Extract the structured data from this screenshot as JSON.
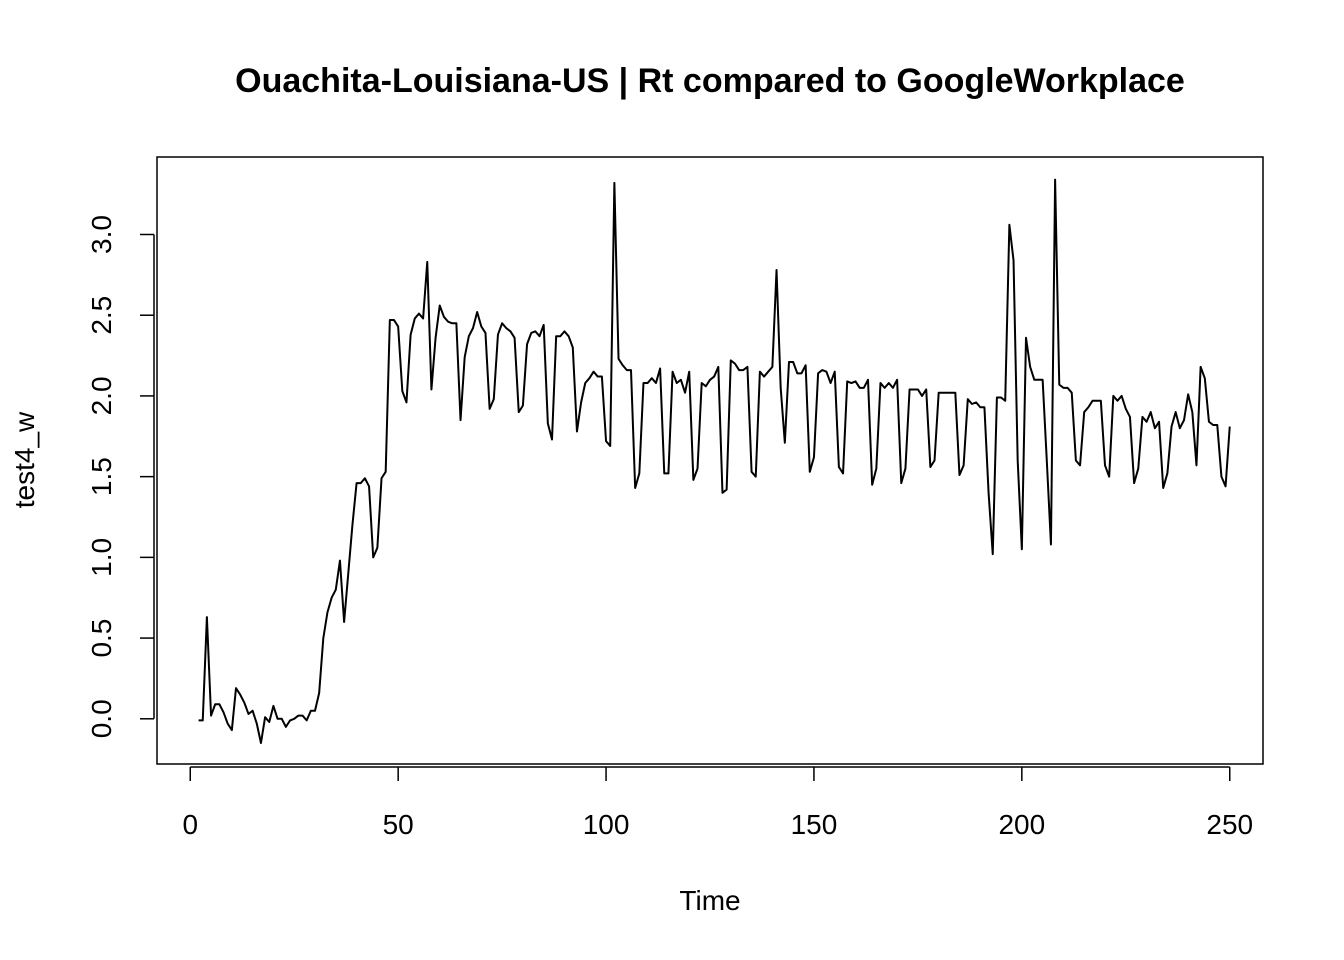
{
  "chart_data": {
    "type": "line",
    "title": "Ouachita-Louisiana-US | Rt compared to GoogleWorkplace",
    "xlabel": "Time",
    "ylabel": "test4_w",
    "xlim": [
      -8,
      258
    ],
    "ylim": [
      -0.28,
      3.48
    ],
    "x_ticks": [
      0,
      50,
      100,
      150,
      200,
      250
    ],
    "y_ticks": [
      0.0,
      0.5,
      1.0,
      1.5,
      2.0,
      2.5,
      3.0
    ],
    "x_tick_labels": [
      "0",
      "50",
      "100",
      "150",
      "200",
      "250"
    ],
    "y_tick_labels": [
      "0.0",
      "0.5",
      "1.0",
      "1.5",
      "2.0",
      "2.5",
      "3.0"
    ],
    "grid": false,
    "legend": "none",
    "line_color": "#000000",
    "series": [
      {
        "x0": 2,
        "values": [
          -0.01,
          -0.01,
          0.63,
          0.02,
          0.09,
          0.09,
          0.04,
          -0.03,
          -0.07,
          0.19,
          0.15,
          0.1,
          0.03,
          0.05,
          -0.03,
          -0.15,
          0.01,
          -0.02,
          0.08,
          0.0,
          0.0,
          -0.05,
          -0.01,
          0.0,
          0.02,
          0.02,
          -0.01,
          0.05,
          0.05,
          0.16,
          0.5,
          0.66,
          0.75,
          0.8,
          0.98,
          0.6,
          0.9,
          1.2,
          1.46,
          1.46,
          1.49,
          1.44,
          1.0,
          1.06,
          1.49,
          1.53,
          2.47,
          2.47,
          2.43,
          2.03,
          1.96,
          2.38,
          2.48,
          2.51,
          2.48,
          2.83,
          2.04,
          2.36,
          2.56,
          2.49,
          2.46,
          2.45,
          2.45,
          1.85,
          2.24,
          2.37,
          2.42,
          2.52,
          2.43,
          2.39,
          1.92,
          1.98,
          2.38,
          2.45,
          2.42,
          2.4,
          2.36,
          1.9,
          1.94,
          2.32,
          2.39,
          2.4,
          2.37,
          2.44,
          1.83,
          1.73,
          2.37,
          2.37,
          2.4,
          2.37,
          2.3,
          1.78,
          1.96,
          2.08,
          2.11,
          2.15,
          2.12,
          2.12,
          1.72,
          1.69,
          3.32,
          2.23,
          2.19,
          2.16,
          2.16,
          1.43,
          1.52,
          2.08,
          2.08,
          2.11,
          2.08,
          2.17,
          1.52,
          1.52,
          2.15,
          2.08,
          2.1,
          2.02,
          2.15,
          1.48,
          1.55,
          2.08,
          2.06,
          2.1,
          2.12,
          2.18,
          1.4,
          1.42,
          2.22,
          2.2,
          2.16,
          2.16,
          2.18,
          1.53,
          1.5,
          2.15,
          2.12,
          2.15,
          2.18,
          2.78,
          2.05,
          1.71,
          2.21,
          2.21,
          2.14,
          2.14,
          2.19,
          1.53,
          1.62,
          2.14,
          2.16,
          2.15,
          2.08,
          2.15,
          1.56,
          1.52,
          2.09,
          2.08,
          2.09,
          2.05,
          2.05,
          2.1,
          1.45,
          1.55,
          2.08,
          2.05,
          2.08,
          2.05,
          2.1,
          1.46,
          1.55,
          2.04,
          2.04,
          2.04,
          2.0,
          2.04,
          1.56,
          1.6,
          2.02,
          2.02,
          2.02,
          2.02,
          2.02,
          1.51,
          1.57,
          1.98,
          1.95,
          1.96,
          1.93,
          1.93,
          1.4,
          1.02,
          1.99,
          1.99,
          1.97,
          3.06,
          2.84,
          1.6,
          1.05,
          2.36,
          2.18,
          2.1,
          2.1,
          2.1,
          1.6,
          1.08,
          3.34,
          2.07,
          2.05,
          2.05,
          2.02,
          1.6,
          1.57,
          1.9,
          1.93,
          1.97,
          1.97,
          1.97,
          1.57,
          1.5,
          2.0,
          1.97,
          2.0,
          1.92,
          1.87,
          1.46,
          1.55,
          1.87,
          1.84,
          1.9,
          1.8,
          1.84,
          1.43,
          1.52,
          1.81,
          1.9,
          1.8,
          1.85,
          2.01,
          1.9,
          1.57,
          2.18,
          2.11,
          1.84,
          1.82,
          1.82,
          1.5,
          1.44,
          1.81
        ]
      }
    ]
  }
}
